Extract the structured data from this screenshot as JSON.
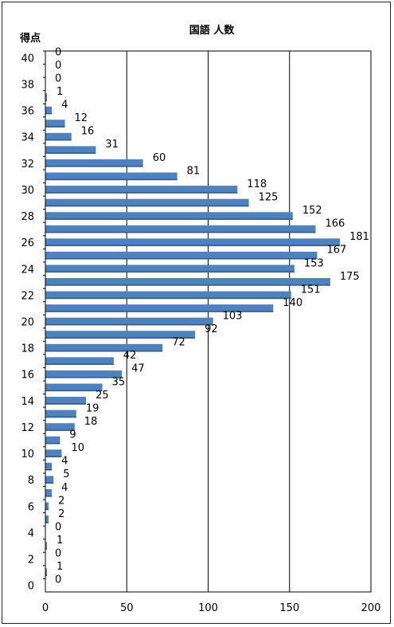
{
  "chart_data": {
    "type": "bar",
    "orientation": "horizontal",
    "title": "国語 人数",
    "ylabel": "得点",
    "xlabel": "",
    "categories": [
      40,
      39,
      38,
      37,
      36,
      35,
      34,
      33,
      32,
      31,
      30,
      29,
      28,
      27,
      26,
      25,
      24,
      23,
      22,
      21,
      20,
      19,
      18,
      17,
      16,
      15,
      14,
      13,
      12,
      11,
      10,
      9,
      8,
      7,
      6,
      5,
      4,
      3,
      2,
      1,
      0
    ],
    "values": [
      0,
      0,
      0,
      1,
      4,
      12,
      16,
      31,
      60,
      81,
      118,
      125,
      152,
      166,
      181,
      167,
      153,
      175,
      151,
      140,
      103,
      92,
      72,
      42,
      47,
      35,
      25,
      19,
      18,
      9,
      10,
      4,
      5,
      4,
      2,
      2,
      0,
      1,
      0,
      1,
      0
    ],
    "y_tick_labels": [
      40,
      38,
      36,
      34,
      32,
      30,
      28,
      26,
      24,
      22,
      20,
      18,
      16,
      14,
      12,
      10,
      8,
      6,
      4,
      2,
      0
    ],
    "x_tick_labels": [
      0,
      50,
      100,
      150,
      200
    ],
    "xlim": [
      0,
      200
    ],
    "grid": "vertical",
    "bar_color": "#4f81bd"
  }
}
